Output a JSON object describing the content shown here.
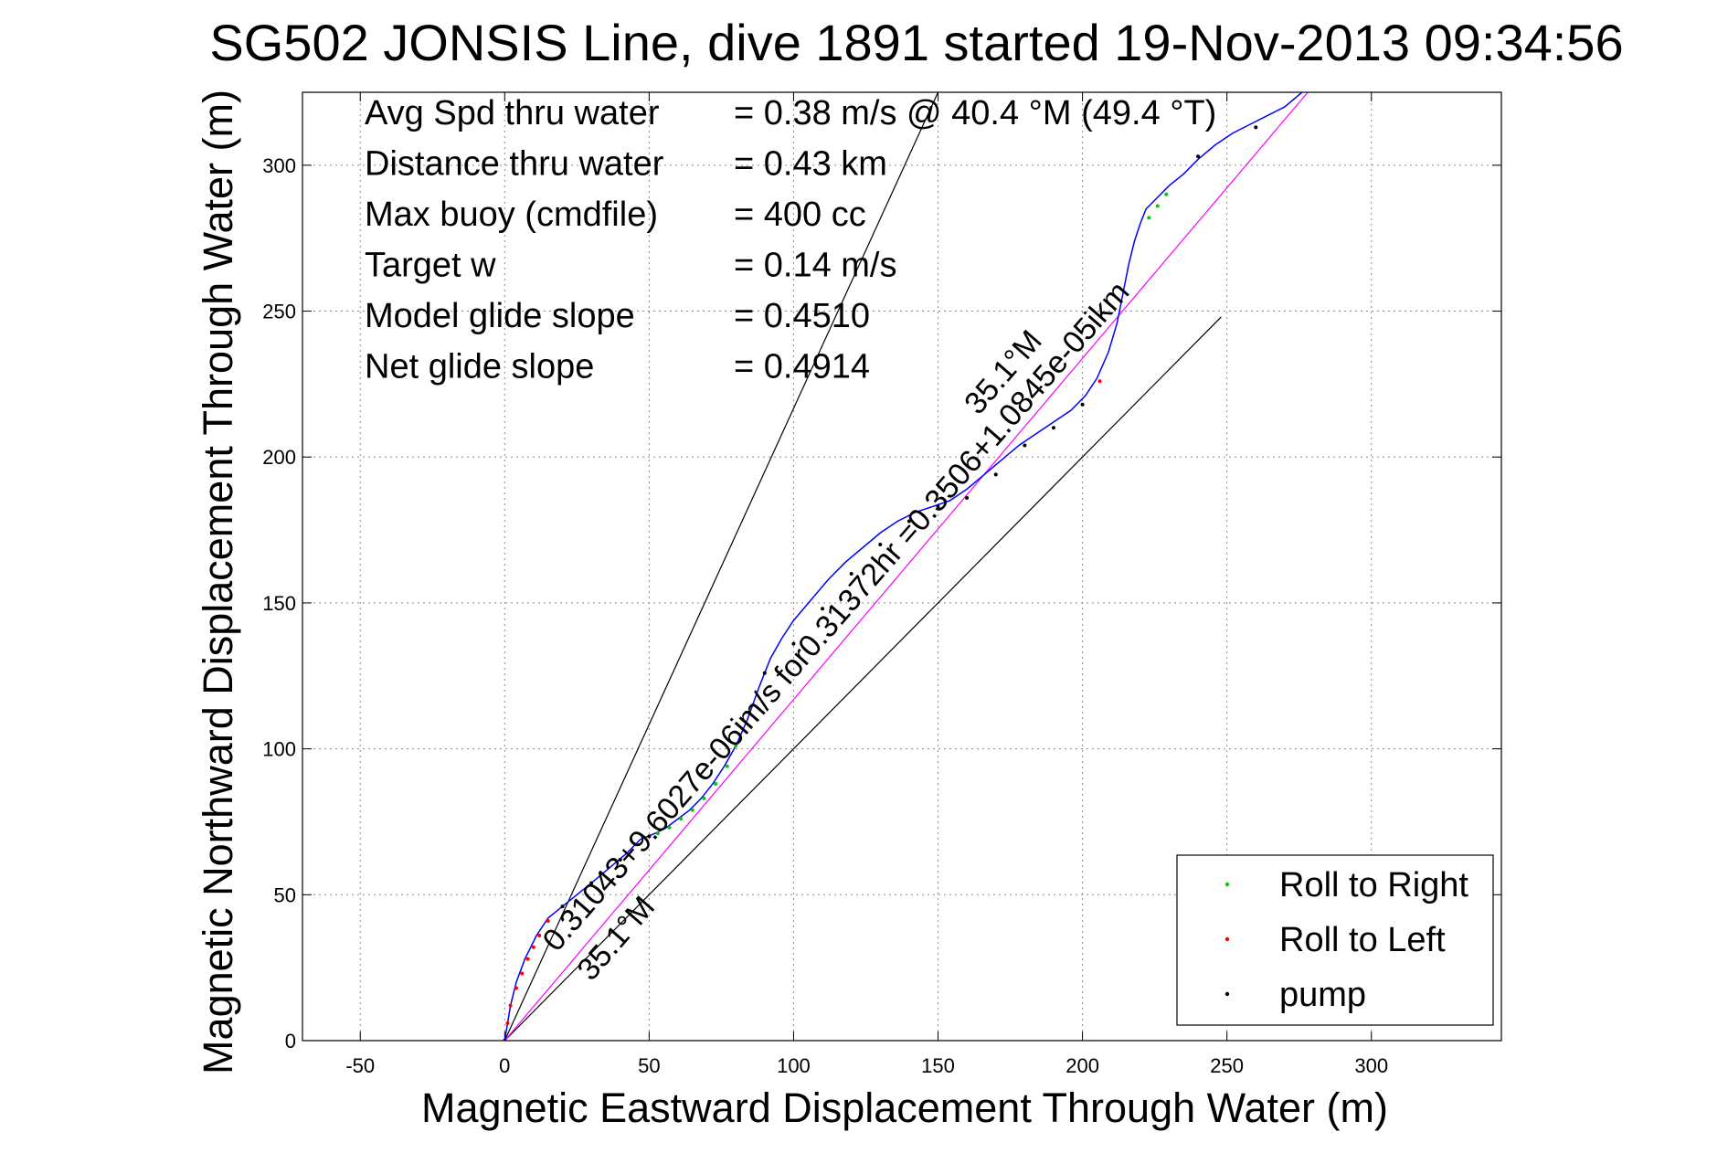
{
  "chart_data": {
    "type": "line",
    "title": "SG502 JONSIS Line, dive 1891 started 19-Nov-2013 09:34:56",
    "xlabel": "Magnetic Eastward Displacement Through Water (m)",
    "ylabel": "Magnetic Northward Displacement Through Water (m)",
    "xlim": [
      -70,
      345
    ],
    "ylim": [
      0,
      325
    ],
    "xticks": [
      -50,
      0,
      50,
      100,
      150,
      200,
      250,
      300
    ],
    "yticks": [
      0,
      50,
      100,
      150,
      200,
      250,
      300
    ],
    "grid": true,
    "legend_position": "bottom-right",
    "info_lines": [
      {
        "label": "Avg Spd thru water",
        "value": "=  0.38 m/s @  40.4 °M (49.4 °T)"
      },
      {
        "label": "Distance thru water",
        "value": "=  0.43 km"
      },
      {
        "label": "Max buoy (cmdfile)",
        "value": "= 400 cc"
      },
      {
        "label": "Target w",
        "value": "= 0.14 m/s"
      },
      {
        "label": "Model glide slope",
        "value": "= 0.4510"
      },
      {
        "label": "Net glide slope",
        "value": "= 0.4914"
      }
    ],
    "reference_lines": [
      {
        "x": [
          0,
          150
        ],
        "y": [
          0,
          325
        ],
        "color": "#000000"
      },
      {
        "x": [
          0,
          248
        ],
        "y": [
          0,
          248
        ],
        "color": "#000000"
      },
      {
        "x": [
          0,
          278
        ],
        "y": [
          0,
          325
        ],
        "color": "#ff00ff"
      }
    ],
    "series": [
      {
        "name": "track",
        "color": "#0000ff",
        "x": [
          0,
          1,
          2,
          4,
          7,
          11,
          15,
          20,
          25,
          30,
          36,
          42,
          47,
          52,
          56,
          60,
          64,
          68,
          72,
          76,
          80,
          84,
          88,
          92,
          96,
          100,
          106,
          112,
          118,
          124,
          130,
          136,
          142,
          148,
          154,
          160,
          166,
          172,
          178,
          184,
          190,
          196,
          201,
          205,
          209,
          212,
          214,
          216,
          218,
          220,
          222,
          226,
          230,
          235,
          240,
          246,
          252,
          258,
          264,
          270,
          276
        ],
        "y": [
          0,
          6,
          12,
          20,
          28,
          36,
          42,
          46,
          50,
          54,
          59,
          64,
          69,
          71,
          73,
          76,
          79,
          83,
          88,
          94,
          101,
          110,
          121,
          131,
          138,
          144,
          151,
          158,
          164,
          169,
          174,
          178,
          181,
          183,
          185,
          189,
          194,
          199,
          204,
          208,
          212,
          216,
          221,
          227,
          236,
          246,
          256,
          266,
          274,
          280,
          285,
          289,
          293,
          297,
          302,
          307,
          311,
          314,
          317,
          320,
          325
        ]
      }
    ],
    "markers": [
      {
        "name": "Roll to Right",
        "color": "#00cc00",
        "x": [
          53,
          57,
          61,
          65,
          69,
          73,
          77,
          80,
          223,
          226,
          229
        ],
        "y": [
          71,
          73,
          76,
          79,
          83,
          88,
          94,
          101,
          282,
          286,
          290
        ]
      },
      {
        "name": "Roll to Left",
        "color": "#ff0000",
        "x": [
          1,
          2,
          4,
          6,
          8,
          10,
          12,
          15,
          206
        ],
        "y": [
          6,
          12,
          18,
          23,
          28,
          32,
          36,
          41,
          226
        ]
      },
      {
        "name": "pump",
        "color": "#000000",
        "x": [
          0,
          20,
          30,
          40,
          50,
          90,
          100,
          110,
          120,
          130,
          140,
          150,
          160,
          170,
          180,
          190,
          200,
          240,
          260
        ],
        "y": [
          0,
          46,
          54,
          62,
          70,
          126,
          136,
          148,
          160,
          170,
          178,
          183,
          186,
          194,
          204,
          210,
          218,
          303,
          313
        ]
      }
    ],
    "annotations": [
      {
        "text": "0.31043+9.6027e-06im/s for0.31372hr =0.3506+1.0845e-05ikm",
        "x": 18,
        "y": 30
      },
      {
        "text": "35.1°M",
        "x": 30,
        "y": 20
      },
      {
        "text": "35.1°M",
        "x": 164,
        "y": 214
      }
    ],
    "legend": [
      {
        "label": "Roll to Right",
        "color": "#00cc00"
      },
      {
        "label": "Roll to Left",
        "color": "#ff0000"
      },
      {
        "label": "pump",
        "color": "#000000"
      }
    ]
  }
}
